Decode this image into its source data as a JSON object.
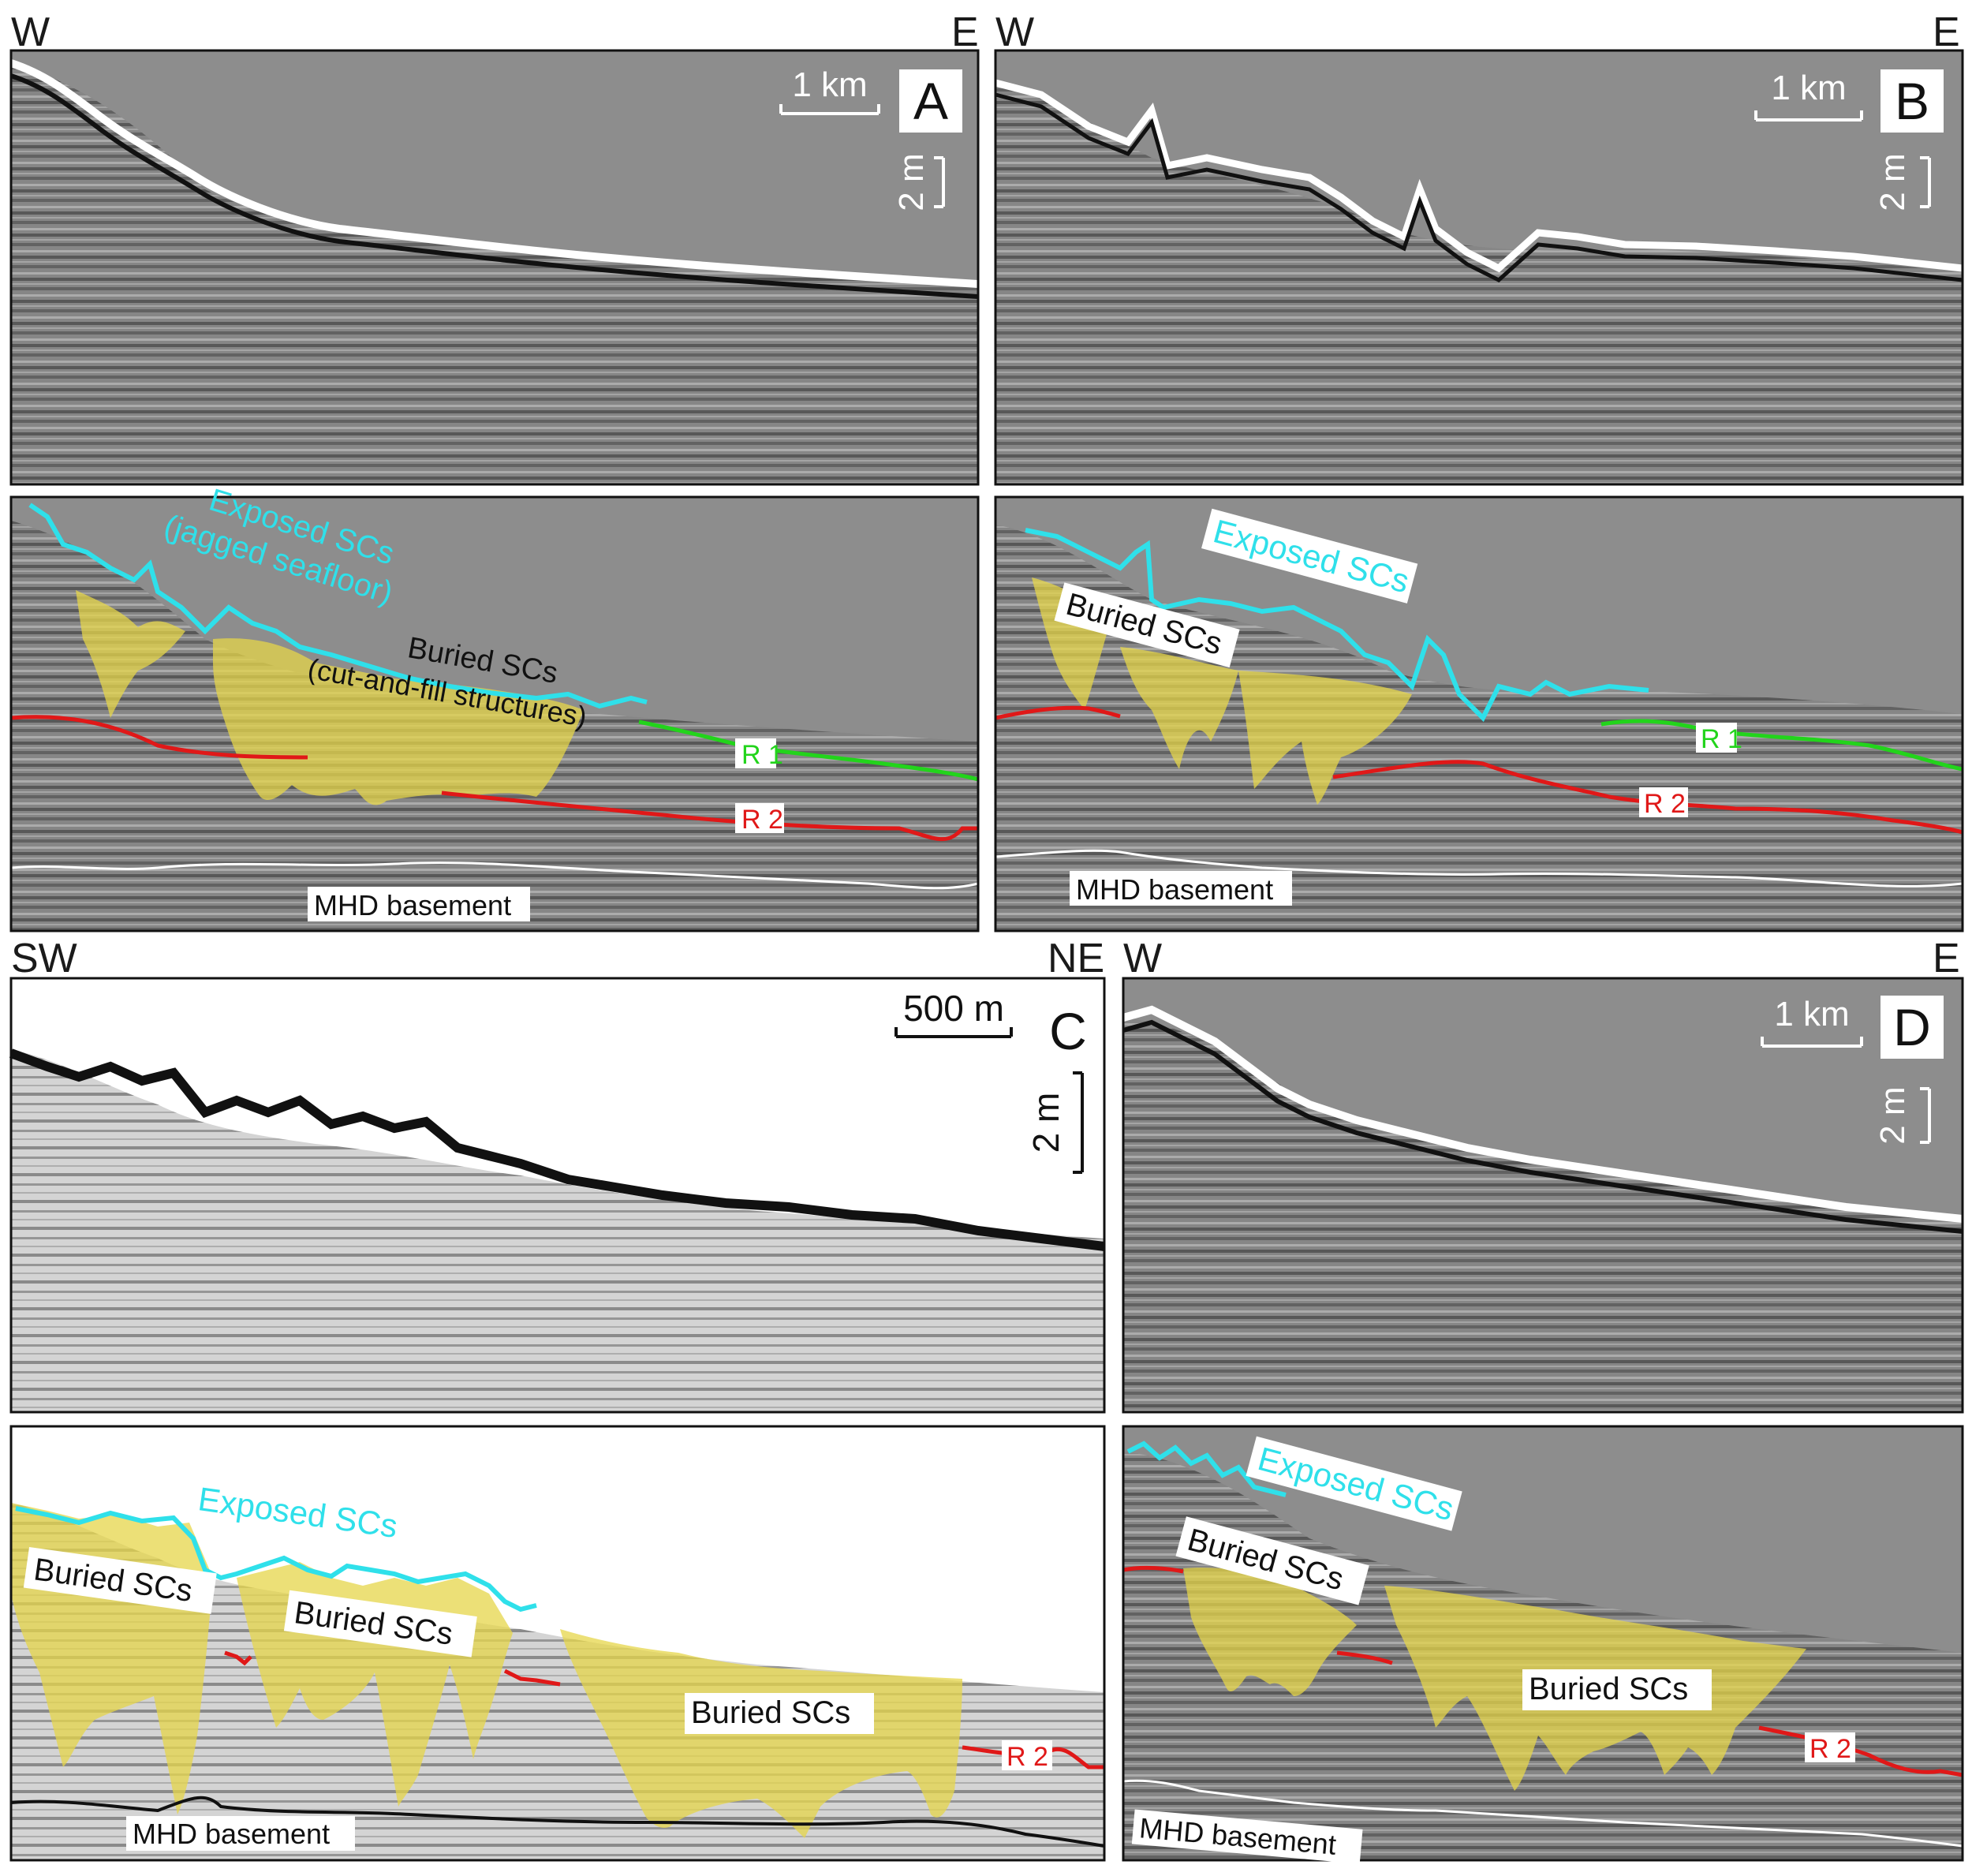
{
  "colors": {
    "seafloor": "#2fe0ea",
    "r1": "#22d41b",
    "r2": "#e01818",
    "fill": "#e6d64a",
    "panel_bg": "#8d8d8d"
  },
  "panels": {
    "A": {
      "letter": "A",
      "dir_left": "W",
      "dir_right": "E",
      "scale_h": "1 km",
      "scale_v": "2 m",
      "labels": {
        "exposed_1": "Exposed SCs",
        "exposed_2": "(jagged seafloor)",
        "buried_1": "Buried SCs",
        "buried_2": "(cut-and-fill structures)",
        "r1": "R 1",
        "r2": "R 2",
        "basement": "MHD basement"
      }
    },
    "B": {
      "letter": "B",
      "dir_left": "W",
      "dir_right": "E",
      "scale_h": "1 km",
      "scale_v": "2 m",
      "labels": {
        "exposed": "Exposed SCs",
        "buried": "Buried SCs",
        "r1": "R 1",
        "r2": "R 2",
        "basement": "MHD basement"
      }
    },
    "C": {
      "letter": "C",
      "dir_left": "SW",
      "dir_right": "NE",
      "scale_h": "500 m",
      "scale_v": "2 m",
      "labels": {
        "exposed": "Exposed SCs",
        "buried_1": "Buried SCs",
        "buried_2": "Buried SCs",
        "buried_3": "Buried SCs",
        "r2": "R 2",
        "basement": "MHD basement"
      }
    },
    "D": {
      "letter": "D",
      "dir_left": "W",
      "dir_right": "E",
      "scale_h": "1 km",
      "scale_v": "2 m",
      "labels": {
        "exposed": "Exposed SCs",
        "buried_1": "Buried SCs",
        "buried_2": "Buried SCs",
        "r2": "R 2",
        "basement": "MHD basement"
      }
    }
  }
}
